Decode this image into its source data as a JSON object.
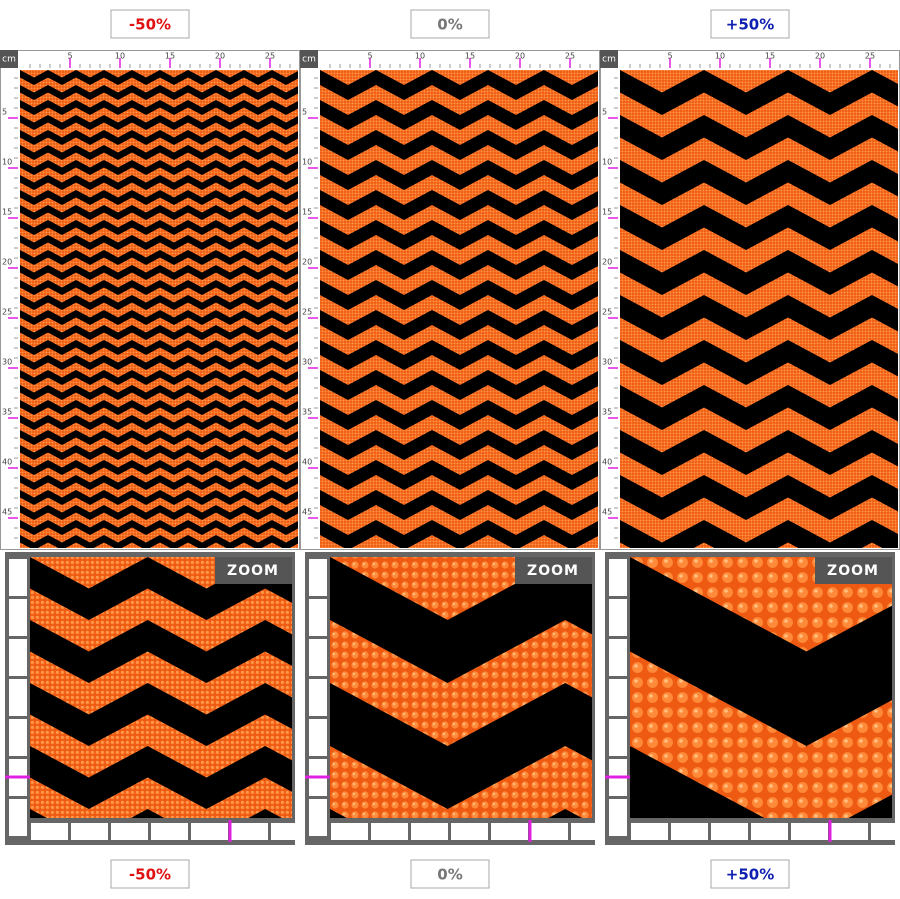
{
  "panels": [
    {
      "label": "-50%",
      "label_color": "#e01010",
      "zoom_label": "ZOOM"
    },
    {
      "label": "0%",
      "label_color": "#777777",
      "zoom_label": "ZOOM"
    },
    {
      "label": "+50%",
      "label_color": "#1020b0",
      "zoom_label": "ZOOM"
    }
  ],
  "ruler": {
    "unit": "cm",
    "x_ticks": [
      5,
      10,
      15,
      20,
      25
    ],
    "y_ticks": [
      5,
      10,
      15,
      20,
      25,
      30,
      35,
      40,
      45
    ]
  }
}
